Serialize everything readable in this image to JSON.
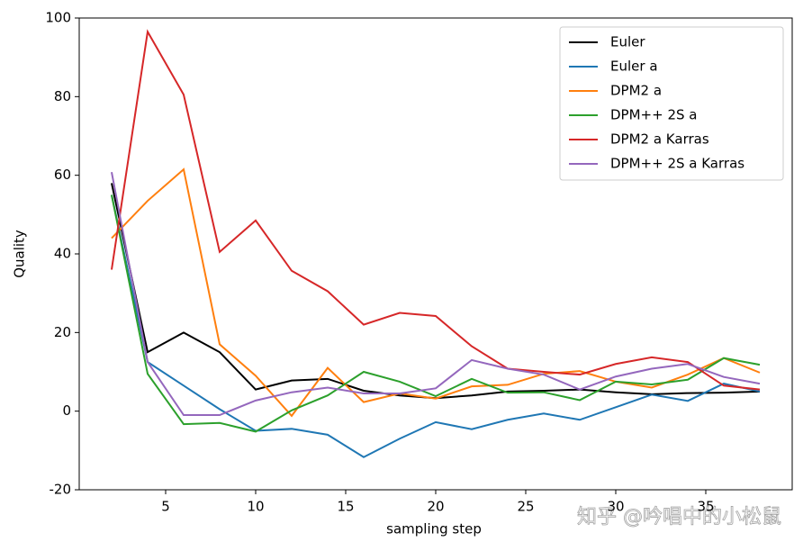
{
  "chart_data": {
    "type": "line",
    "x_label": "sampling step",
    "y_label": "Quality",
    "watermark": "知乎 @吟唱中的小松鼠",
    "x": [
      2,
      4,
      6,
      8,
      10,
      12,
      14,
      16,
      18,
      20,
      22,
      24,
      26,
      28,
      30,
      32,
      34,
      36,
      38
    ],
    "xlim": [
      0.2,
      39.8
    ],
    "xticks": [
      5,
      10,
      15,
      20,
      25,
      30,
      35
    ],
    "ylim": [
      -20,
      100
    ],
    "yticks": [
      -20,
      0,
      20,
      40,
      60,
      80,
      100
    ],
    "legend": "upper right",
    "series": [
      {
        "name": "Euler",
        "color": "#000000",
        "values": [
          58,
          15,
          20,
          15,
          5.5,
          7.8,
          8.2,
          5.2,
          4,
          3.3,
          4,
          5,
          5.2,
          5.5,
          4.8,
          4.3,
          4.6,
          4.7,
          5
        ]
      },
      {
        "name": "Euler a",
        "color": "#1f77b4",
        "values": [
          55,
          12.5,
          6.5,
          0.5,
          -5,
          -4.5,
          -6,
          -11.7,
          -7,
          -2.8,
          -4.6,
          -2.2,
          -0.6,
          -2.2,
          1,
          4.2,
          2.6,
          7,
          5
        ]
      },
      {
        "name": "DPM2 a",
        "color": "#ff7f0e",
        "values": [
          44,
          53.5,
          61.5,
          17,
          9,
          -1.2,
          11,
          2.3,
          4.5,
          3.2,
          6.3,
          6.7,
          9.5,
          10.2,
          7.5,
          6,
          9.3,
          13.5,
          9.8
        ]
      },
      {
        "name": "DPM++ 2S a",
        "color": "#2ca02c",
        "values": [
          55,
          9.5,
          -3.3,
          -3,
          -5.2,
          0.2,
          4,
          10,
          7.5,
          3.8,
          8.2,
          4.7,
          4.8,
          2.8,
          7.5,
          6.8,
          8,
          13.5,
          11.8
        ]
      },
      {
        "name": "DPM2 a Karras",
        "color": "#d62728",
        "values": [
          36,
          96.5,
          80.5,
          40.5,
          48.5,
          35.7,
          30.5,
          22,
          25,
          24.2,
          16.5,
          10.8,
          10,
          9.3,
          12,
          13.7,
          12.5,
          6.5,
          5.5
        ]
      },
      {
        "name": "DPM++ 2S a Karras",
        "color": "#9467bd",
        "values": [
          60.8,
          12.5,
          -1,
          -1,
          2.7,
          4.8,
          6,
          4.5,
          4.5,
          5.8,
          13,
          10.8,
          9.3,
          5.5,
          8.8,
          10.8,
          12,
          8.7,
          7
        ]
      }
    ]
  }
}
